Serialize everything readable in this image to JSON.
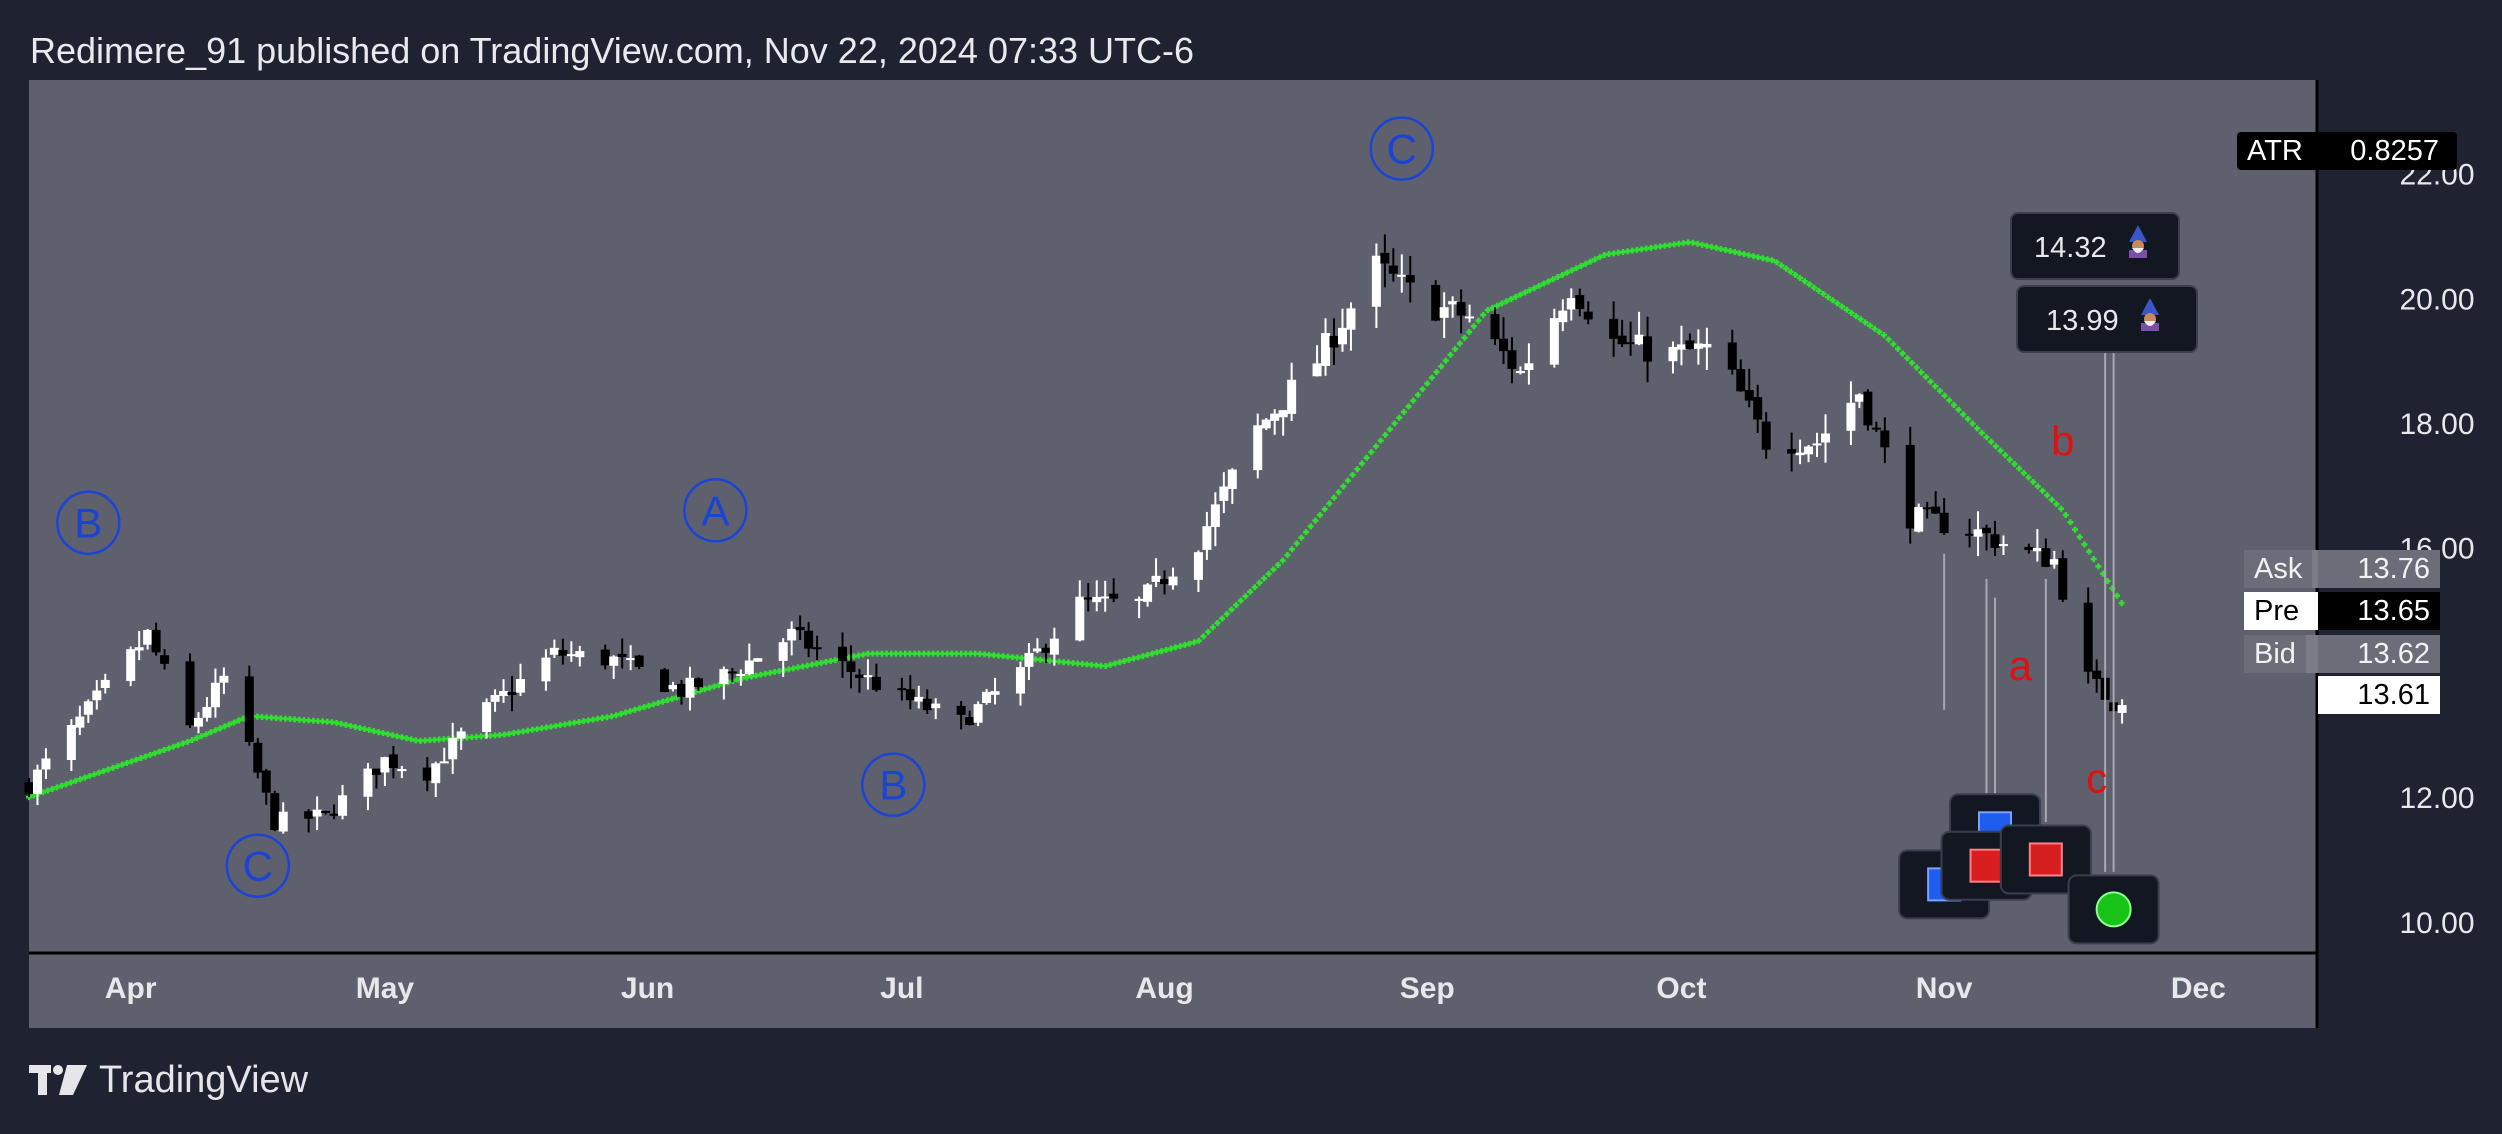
{
  "header": {
    "title": "Redimere_91 published on TradingView.com, Nov 22, 2024 07:33 UTC-6"
  },
  "footer": {
    "brand": "TradingView"
  },
  "indicator": {
    "name": "ATR",
    "value": "0.8257"
  },
  "quotes": {
    "ask": {
      "label": "Ask",
      "value": "13.76"
    },
    "pre": {
      "label": "Pre",
      "value": "13.65"
    },
    "bid": {
      "label": "Bid",
      "value": "13.62"
    },
    "last": {
      "value": "13.61"
    }
  },
  "callouts": [
    {
      "value": "14.32"
    },
    {
      "value": "13.99"
    }
  ],
  "colors": {
    "background": "#1f2230",
    "plot": "#5f606d",
    "bull": "#ffffff",
    "bear": "#000000",
    "wave_label": "#1a44d6",
    "red_label": "#e01010",
    "trail": "#2fe02f"
  },
  "chart_data": {
    "type": "candlestick",
    "ylim": [
      9.5,
      23.5
    ],
    "yticks": [
      "10.00",
      "12.00",
      "16.00",
      "18.00",
      "20.00",
      "22.00"
    ],
    "xticks": [
      "Apr",
      "May",
      "Jun",
      "Jul",
      "Aug",
      "Sep",
      "Oct",
      "Nov",
      "Dec"
    ],
    "x_range": [
      "2024-03-20",
      "2024-12-15"
    ],
    "anchors": [
      [
        "2024-03-20",
        12.2
      ],
      [
        "2024-04-03",
        14.6
      ],
      [
        "2024-04-08",
        13.1
      ],
      [
        "2024-04-12",
        13.9
      ],
      [
        "2024-04-18",
        11.6
      ],
      [
        "2024-04-24",
        11.7
      ],
      [
        "2024-05-01",
        12.6
      ],
      [
        "2024-05-06",
        12.4
      ],
      [
        "2024-05-13",
        13.4
      ],
      [
        "2024-05-21",
        14.3
      ],
      [
        "2024-05-28",
        14.2
      ],
      [
        "2024-06-05",
        13.7
      ],
      [
        "2024-06-11",
        14.0
      ],
      [
        "2024-06-18",
        14.6
      ],
      [
        "2024-06-24",
        14.1
      ],
      [
        "2024-07-01",
        13.6
      ],
      [
        "2024-07-08",
        13.2
      ],
      [
        "2024-07-15",
        14.0
      ],
      [
        "2024-07-22",
        15.1
      ],
      [
        "2024-07-29",
        15.1
      ],
      [
        "2024-08-05",
        16.1
      ],
      [
        "2024-08-12",
        17.9
      ],
      [
        "2024-08-19",
        19.0
      ],
      [
        "2024-08-26",
        20.5
      ],
      [
        "2024-09-01",
        19.9
      ],
      [
        "2024-09-06",
        19.7
      ],
      [
        "2024-09-12",
        18.8
      ],
      [
        "2024-09-18",
        20.2
      ],
      [
        "2024-09-23",
        19.3
      ],
      [
        "2024-09-29",
        19.1
      ],
      [
        "2024-10-05",
        19.2
      ],
      [
        "2024-10-11",
        17.7
      ],
      [
        "2024-10-17",
        17.7
      ],
      [
        "2024-10-22",
        18.5
      ],
      [
        "2024-10-28",
        16.5
      ],
      [
        "2024-11-04",
        16.3
      ],
      [
        "2024-11-11",
        15.9
      ],
      [
        "2024-11-14",
        15.8
      ],
      [
        "2024-11-18",
        13.9
      ],
      [
        "2024-11-21",
        13.5
      ],
      [
        "2024-11-22",
        13.6
      ]
    ],
    "trail": [
      [
        "2024-03-20",
        12.0
      ],
      [
        "2024-04-08",
        12.9
      ],
      [
        "2024-04-15",
        13.3
      ],
      [
        "2024-04-25",
        13.2
      ],
      [
        "2024-05-05",
        12.9
      ],
      [
        "2024-05-15",
        13.0
      ],
      [
        "2024-05-28",
        13.3
      ],
      [
        "2024-06-12",
        13.9
      ],
      [
        "2024-06-27",
        14.3
      ],
      [
        "2024-07-10",
        14.3
      ],
      [
        "2024-07-25",
        14.1
      ],
      [
        "2024-08-05",
        14.5
      ],
      [
        "2024-08-15",
        15.8
      ],
      [
        "2024-08-27",
        17.8
      ],
      [
        "2024-09-08",
        19.8
      ],
      [
        "2024-09-22",
        20.7
      ],
      [
        "2024-10-02",
        20.9
      ],
      [
        "2024-10-12",
        20.6
      ],
      [
        "2024-10-25",
        19.4
      ],
      [
        "2024-11-05",
        17.9
      ],
      [
        "2024-11-15",
        16.6
      ],
      [
        "2024-11-22",
        15.1
      ]
    ],
    "wave_labels": [
      {
        "text": "B",
        "date": "2024-03-27",
        "price": 16.4
      },
      {
        "text": "C",
        "date": "2024-04-16",
        "price": 10.9
      },
      {
        "text": "A",
        "date": "2024-06-09",
        "price": 16.6
      },
      {
        "text": "B",
        "date": "2024-06-30",
        "price": 12.2
      },
      {
        "text": "C",
        "date": "2024-08-29",
        "price": 22.4
      }
    ],
    "red_labels": [
      {
        "text": "b",
        "date": "2024-11-15",
        "price": 17.7
      },
      {
        "text": "a",
        "date": "2024-11-10",
        "price": 14.1
      },
      {
        "text": "c",
        "date": "2024-11-19",
        "price": 12.3
      }
    ],
    "markers": [
      {
        "kind": "blue-square",
        "date": "2024-11-01",
        "price": 10.6
      },
      {
        "kind": "blue-square",
        "date": "2024-11-07",
        "price": 11.5
      },
      {
        "kind": "red-square",
        "date": "2024-11-06",
        "price": 10.9
      },
      {
        "kind": "red-square",
        "date": "2024-11-13",
        "price": 11.0
      },
      {
        "kind": "green-circle",
        "date": "2024-11-21",
        "price": 10.2
      }
    ],
    "leader_lines": [
      {
        "date": "2024-11-01",
        "from": 13.4,
        "to": 15.9
      },
      {
        "date": "2024-11-06",
        "from": 11.6,
        "to": 15.5
      },
      {
        "date": "2024-11-07",
        "from": 11.6,
        "to": 15.2
      },
      {
        "date": "2024-11-13",
        "from": 11.6,
        "to": 15.5
      },
      {
        "date": "2024-11-20",
        "from": 10.8,
        "to": 19.5
      },
      {
        "date": "2024-11-21",
        "from": 10.8,
        "to": 19.5
      }
    ]
  }
}
